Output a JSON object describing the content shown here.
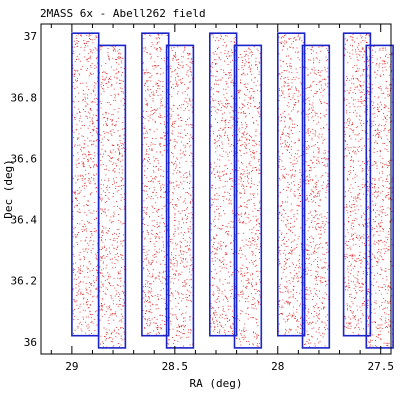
{
  "chart_data": {
    "type": "scatter",
    "title": "2MASS 6x - Abell262 field",
    "xlabel": "RA (deg)",
    "ylabel": "Dec (deg)",
    "xlim": [
      29.15,
      27.45
    ],
    "ylim": [
      35.96,
      37.04
    ],
    "x_inverted": true,
    "xticks": [
      29,
      28.5,
      28,
      27.5
    ],
    "xtick_labels": [
      "29",
      "28.5",
      "28",
      "27.5"
    ],
    "yticks": [
      36,
      36.2,
      36.4,
      36.6,
      36.8,
      37
    ],
    "ytick_labels": [
      "36",
      "36.2",
      "36.4",
      "36.6",
      "36.8",
      "37"
    ],
    "grid": false,
    "series": [
      {
        "name": "",
        "kind": "points",
        "color": "#e02020",
        "density_note": "dense random source distribution within scan stripes"
      },
      {
        "name": "",
        "kind": "rectangles",
        "color": "#1a24c8"
      }
    ],
    "scan_stripes": [
      {
        "ra_min": 28.87,
        "ra_max": 29.0,
        "dec_min": 36.02,
        "dec_max": 37.01
      },
      {
        "ra_min": 28.74,
        "ra_max": 28.87,
        "dec_min": 35.98,
        "dec_max": 36.97
      },
      {
        "ra_min": 28.53,
        "ra_max": 28.66,
        "dec_min": 36.02,
        "dec_max": 37.01
      },
      {
        "ra_min": 28.41,
        "ra_max": 28.54,
        "dec_min": 35.98,
        "dec_max": 36.97
      },
      {
        "ra_min": 28.2,
        "ra_max": 28.33,
        "dec_min": 36.02,
        "dec_max": 37.01
      },
      {
        "ra_min": 28.08,
        "ra_max": 28.21,
        "dec_min": 35.98,
        "dec_max": 36.97
      },
      {
        "ra_min": 27.87,
        "ra_max": 28.0,
        "dec_min": 36.02,
        "dec_max": 37.01
      },
      {
        "ra_min": 27.75,
        "ra_max": 27.88,
        "dec_min": 35.98,
        "dec_max": 36.97
      },
      {
        "ra_min": 27.55,
        "ra_max": 27.68,
        "dec_min": 36.02,
        "dec_max": 37.01
      },
      {
        "ra_min": 27.44,
        "ra_max": 27.57,
        "dec_min": 35.98,
        "dec_max": 36.97
      }
    ]
  }
}
